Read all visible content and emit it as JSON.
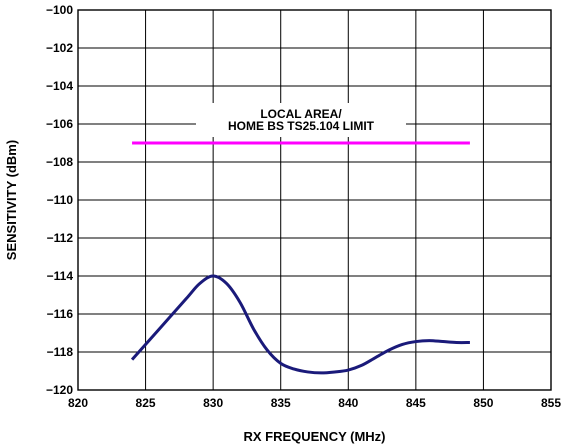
{
  "chart_data": {
    "type": "line",
    "xlabel": "RX FREQUENCY (MHz)",
    "ylabel": "SENSITIVITY (dBm)",
    "xlim": [
      820,
      855
    ],
    "ylim": [
      -120,
      -100
    ],
    "x_ticks": [
      "820",
      "825",
      "830",
      "835",
      "840",
      "845",
      "850",
      "855"
    ],
    "y_ticks": [
      "−100",
      "−102",
      "−104",
      "−106",
      "−108",
      "−110",
      "−112",
      "−114",
      "−116",
      "−118",
      "−120"
    ],
    "grid": true,
    "series": [
      {
        "color": "#1a1a7a",
        "x": [
          824,
          826,
          828,
          829,
          830,
          831,
          832,
          833,
          834,
          835,
          836,
          837,
          838,
          839,
          840,
          841,
          842,
          843,
          844,
          845,
          846,
          847,
          848,
          849
        ],
        "y": [
          -118.4,
          -116.8,
          -115.2,
          -114.4,
          -114.0,
          -114.4,
          -115.4,
          -116.8,
          -117.9,
          -118.6,
          -118.9,
          -119.05,
          -119.1,
          -119.05,
          -118.95,
          -118.7,
          -118.3,
          -117.9,
          -117.6,
          -117.45,
          -117.4,
          -117.45,
          -117.5,
          -117.5
        ]
      },
      {
        "color": "#ff00ff",
        "x": [
          824,
          849
        ],
        "y": [
          -107,
          -107
        ]
      }
    ],
    "annotations": [
      {
        "lines": [
          "LOCAL AREA/",
          "HOME BS TS25.104 LIMIT"
        ]
      }
    ]
  }
}
